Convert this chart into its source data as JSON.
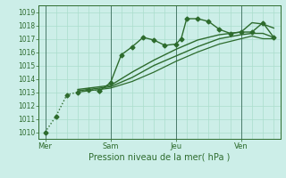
{
  "bg_color": "#cceee8",
  "grid_color": "#aaddcc",
  "line_color": "#2d6b2d",
  "vline_color": "#4a7a6a",
  "ylabel_values": [
    1010,
    1011,
    1012,
    1013,
    1014,
    1015,
    1016,
    1017,
    1018,
    1019
  ],
  "xtick_labels": [
    "Mer",
    "Sam",
    "Jeu",
    "Ven"
  ],
  "xtick_positions": [
    0,
    3,
    6,
    9
  ],
  "xlabel": "Pression niveau de la mer( hPa )",
  "ylim": [
    1009.5,
    1019.5
  ],
  "xlim": [
    -0.3,
    10.8
  ],
  "series": [
    {
      "x": [
        0,
        0.5,
        1.0,
        1.5,
        2.0,
        2.5,
        3.0,
        3.5,
        4.0,
        4.5,
        5.0,
        5.5,
        6.0,
        6.25,
        6.5,
        7.0,
        7.5,
        8.0,
        8.5,
        9.0,
        9.5,
        10.0,
        10.5
      ],
      "y": [
        1010.0,
        1011.2,
        1012.8,
        1013.0,
        1013.2,
        1013.1,
        1013.7,
        1015.8,
        1016.4,
        1017.1,
        1016.9,
        1016.5,
        1016.6,
        1017.0,
        1018.5,
        1018.5,
        1018.3,
        1017.7,
        1017.4,
        1017.5,
        1017.5,
        1018.2,
        1017.1
      ],
      "marker": "D",
      "markersize": 2.5,
      "linewidth": 1.0,
      "linestyle": "-",
      "dotted_until": 2.5
    },
    {
      "x": [
        1.5,
        2.0,
        2.5,
        3.0,
        4.0,
        5.0,
        6.0,
        7.0,
        8.0,
        9.0,
        9.5,
        10.0,
        10.5
      ],
      "y": [
        1013.2,
        1013.3,
        1013.4,
        1013.5,
        1014.5,
        1015.4,
        1016.2,
        1016.9,
        1017.3,
        1017.5,
        1018.2,
        1018.1,
        1017.8
      ],
      "marker": null,
      "markersize": 0,
      "linewidth": 1.0,
      "linestyle": "-",
      "dotted_until": null
    },
    {
      "x": [
        1.5,
        2.0,
        2.5,
        3.0,
        4.0,
        5.0,
        6.0,
        7.0,
        8.0,
        9.0,
        9.5,
        10.0,
        10.5
      ],
      "y": [
        1013.1,
        1013.2,
        1013.3,
        1013.4,
        1014.1,
        1015.0,
        1015.7,
        1016.4,
        1017.0,
        1017.3,
        1017.4,
        1017.4,
        1017.1
      ],
      "marker": null,
      "markersize": 0,
      "linewidth": 1.0,
      "linestyle": "-",
      "dotted_until": null
    },
    {
      "x": [
        1.5,
        2.0,
        2.5,
        3.0,
        4.0,
        5.0,
        6.0,
        7.0,
        8.0,
        9.0,
        9.5,
        10.0,
        10.5
      ],
      "y": [
        1013.0,
        1013.1,
        1013.2,
        1013.3,
        1013.8,
        1014.5,
        1015.3,
        1016.0,
        1016.6,
        1017.0,
        1017.2,
        1017.0,
        1017.0
      ],
      "marker": null,
      "markersize": 0,
      "linewidth": 0.9,
      "linestyle": "-",
      "dotted_until": null
    }
  ],
  "minor_x_ticks": 0.5,
  "label_fontsize": 5.5,
  "xlabel_fontsize": 7.0,
  "xtick_fontsize": 6.0
}
